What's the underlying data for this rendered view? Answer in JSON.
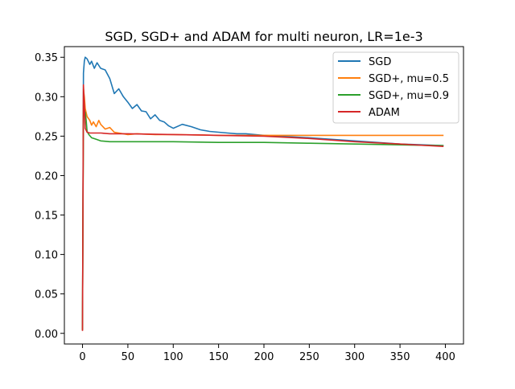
{
  "chart_data": {
    "type": "line",
    "title": "SGD, SGD+ and ADAM for multi neuron, LR=1e-3",
    "xlabel": "",
    "ylabel": "",
    "xlim": [
      -20,
      420
    ],
    "ylim": [
      -0.0135,
      0.3635
    ],
    "x_ticks": [
      0,
      50,
      100,
      150,
      200,
      250,
      300,
      350,
      400
    ],
    "y_ticks": [
      0.0,
      0.05,
      0.1,
      0.15,
      0.2,
      0.25,
      0.3,
      0.35
    ],
    "y_tick_labels": [
      "0.00",
      "0.05",
      "0.10",
      "0.15",
      "0.20",
      "0.25",
      "0.30",
      "0.35"
    ],
    "grid": false,
    "legend_position": "top-right",
    "series": [
      {
        "name": "SGD",
        "color": "#1f77b4",
        "x": [
          0,
          1,
          2,
          3,
          5,
          8,
          10,
          13,
          16,
          20,
          25,
          30,
          35,
          40,
          45,
          50,
          55,
          60,
          65,
          70,
          75,
          80,
          85,
          90,
          95,
          100,
          110,
          120,
          130,
          140,
          150,
          160,
          170,
          180,
          190,
          200,
          250,
          300,
          350,
          398
        ],
        "y": [
          0.005,
          0.33,
          0.345,
          0.35,
          0.348,
          0.341,
          0.345,
          0.336,
          0.343,
          0.336,
          0.334,
          0.323,
          0.304,
          0.31,
          0.3,
          0.293,
          0.285,
          0.29,
          0.282,
          0.281,
          0.272,
          0.277,
          0.27,
          0.268,
          0.263,
          0.26,
          0.265,
          0.262,
          0.258,
          0.256,
          0.255,
          0.254,
          0.253,
          0.253,
          0.252,
          0.251,
          0.248,
          0.244,
          0.24,
          0.238
        ]
      },
      {
        "name": "SGD+, mu=0.5",
        "color": "#ff7f0e",
        "x": [
          0,
          1,
          2,
          3,
          5,
          8,
          10,
          12,
          15,
          18,
          20,
          25,
          30,
          35,
          40,
          50,
          60,
          80,
          100,
          150,
          200,
          250,
          300,
          350,
          398
        ],
        "y": [
          0.004,
          0.31,
          0.3,
          0.285,
          0.275,
          0.27,
          0.264,
          0.268,
          0.262,
          0.27,
          0.265,
          0.259,
          0.261,
          0.255,
          0.254,
          0.252,
          0.253,
          0.252,
          0.252,
          0.251,
          0.251,
          0.251,
          0.251,
          0.251,
          0.251
        ]
      },
      {
        "name": "SGD+, mu=0.9",
        "color": "#2ca02c",
        "x": [
          0,
          1,
          2,
          3,
          4,
          5,
          7,
          10,
          15,
          20,
          30,
          50,
          100,
          150,
          200,
          250,
          300,
          350,
          398
        ],
        "y": [
          0.004,
          0.29,
          0.283,
          0.28,
          0.27,
          0.256,
          0.252,
          0.248,
          0.246,
          0.244,
          0.243,
          0.243,
          0.243,
          0.242,
          0.242,
          0.241,
          0.24,
          0.239,
          0.238
        ]
      },
      {
        "name": "ADAM",
        "color": "#d62728",
        "x": [
          0,
          1,
          2,
          3,
          5,
          8,
          10,
          15,
          20,
          30,
          50,
          100,
          150,
          200,
          250,
          300,
          350,
          398
        ],
        "y": [
          0.003,
          0.315,
          0.29,
          0.26,
          0.255,
          0.254,
          0.254,
          0.254,
          0.254,
          0.253,
          0.253,
          0.252,
          0.251,
          0.25,
          0.247,
          0.243,
          0.24,
          0.237
        ]
      }
    ]
  }
}
